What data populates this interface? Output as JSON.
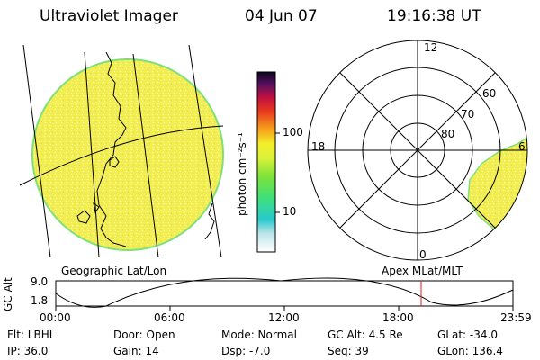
{
  "header": {
    "instrument": "Ultraviolet Imager",
    "date": "04 Jun 07",
    "time": "19:16:38 UT"
  },
  "colorbar": {
    "unit_label": "photon cm⁻²s⁻¹",
    "ticks": [
      "100",
      "10"
    ]
  },
  "map_labels": {
    "left": "Geographic Lat/Lon",
    "right": "Apex MLat/MLT"
  },
  "polar": {
    "mlt_labels": {
      "top": "12",
      "left": "18",
      "right": "6",
      "bottom": "0"
    },
    "lat_labels": [
      "60",
      "70",
      "80"
    ]
  },
  "timeline": {
    "ylabel": "GC Alt",
    "y_ticks": [
      "9.0",
      "1.8"
    ],
    "x_ticks": [
      "00:00",
      "06:00",
      "12:00",
      "18:00",
      "23:59"
    ]
  },
  "info": {
    "flt": "Flt: LBHL",
    "door": "Door: Open",
    "mode": "Mode: Normal",
    "gc_alt": "GC Alt: 4.5 Re",
    "glat": "GLat: -34.0",
    "ip": "IP: 36.0",
    "gain": "Gain: 14",
    "dsp": "Dsp:    -7.0",
    "seq": "Seq: 39",
    "glon": "GLon: 136.4"
  },
  "colors": {
    "aurora_yellow": "#f4f05a",
    "rim_green": "#7ee07a"
  }
}
